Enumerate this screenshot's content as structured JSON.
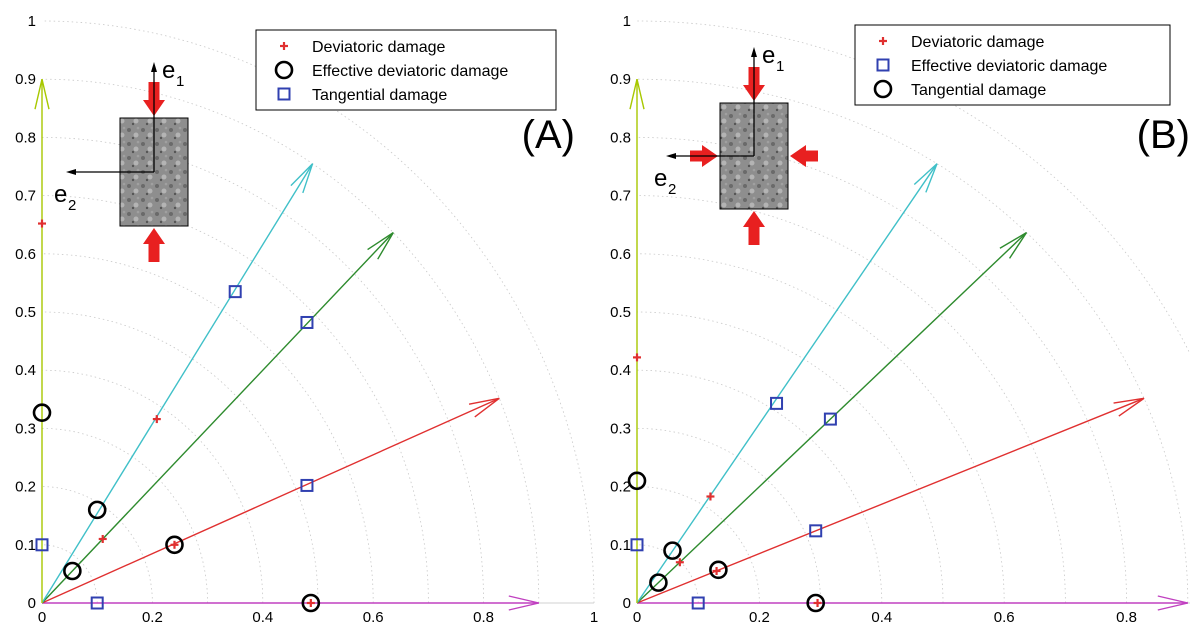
{
  "chart_data": [
    {
      "type": "scatter",
      "panel_label": "(A)",
      "xlim": [
        0,
        1
      ],
      "ylim": [
        0,
        1
      ],
      "x_ticks": [
        "0",
        "0.2",
        "0.4",
        "0.6",
        "0.8",
        "1"
      ],
      "y_ticks": [
        "0",
        "0.1",
        "0.2",
        "0.3",
        "0.4",
        "0.5",
        "0.6",
        "0.7",
        "0.8",
        "0.9",
        "1"
      ],
      "grid": "dotted radial arcs",
      "legend_position": "top-right",
      "axis_labels": {
        "e1": "e",
        "e1_sub": "1",
        "e2": "e",
        "e2_sub": "2"
      },
      "specimen": "uniaxial compression along e1",
      "rays": [
        {
          "angle_deg": 0,
          "length": 0.9,
          "color": "#c040c0"
        },
        {
          "angle_deg": 23,
          "length": 0.9,
          "color": "#e03030"
        },
        {
          "angle_deg": 45,
          "length": 0.9,
          "color": "#2e8b2e"
        },
        {
          "angle_deg": 57,
          "length": 0.9,
          "color": "#40c0c8"
        },
        {
          "angle_deg": 90,
          "length": 0.9,
          "color": "#a8c800"
        }
      ],
      "series": [
        {
          "name": "Deviatoric damage",
          "marker": "plus",
          "color": "#e03030",
          "points": [
            [
              0,
              0.652
            ],
            [
              0.11,
              0.11
            ],
            [
              0.208,
              0.316
            ],
            [
              0.24,
              0.1
            ],
            [
              0.487,
              0.0
            ]
          ]
        },
        {
          "name": "Effective deviatoric damage",
          "marker": "circle",
          "color": "#000000",
          "points": [
            [
              0,
              0.327
            ],
            [
              0.055,
              0.055
            ],
            [
              0.1,
              0.16
            ],
            [
              0.24,
              0.1
            ],
            [
              0.487,
              0.0
            ]
          ]
        },
        {
          "name": "Tangential damage",
          "marker": "square",
          "color": "#3040b0",
          "points": [
            [
              0,
              0.1
            ],
            [
              0.1,
              0.0
            ],
            [
              0.35,
              0.535
            ],
            [
              0.48,
              0.482
            ],
            [
              0.48,
              0.202
            ]
          ]
        }
      ]
    },
    {
      "type": "scatter",
      "panel_label": "(B)",
      "xlim": [
        0,
        1
      ],
      "ylim": [
        0,
        1
      ],
      "x_ticks": [
        "0",
        "0.2",
        "0.4",
        "0.6",
        "0.8"
      ],
      "y_ticks": [
        "0",
        "0.1",
        "0.2",
        "0.3",
        "0.4",
        "0.5",
        "0.6",
        "0.7",
        "0.8",
        "0.9",
        "1"
      ],
      "grid": "dotted radial arcs",
      "legend_position": "top-right",
      "axis_labels": {
        "e1": "e",
        "e1_sub": "1",
        "e2": "e",
        "e2_sub": "2"
      },
      "specimen": "biaxial compression along e1 and e2",
      "rays": [
        {
          "angle_deg": 0,
          "length": 0.9,
          "color": "#c040c0"
        },
        {
          "angle_deg": 23,
          "length": 0.9,
          "color": "#e03030"
        },
        {
          "angle_deg": 45,
          "length": 0.9,
          "color": "#2e8b2e"
        },
        {
          "angle_deg": 57,
          "length": 0.9,
          "color": "#40c0c8"
        },
        {
          "angle_deg": 90,
          "length": 0.9,
          "color": "#a8c800"
        }
      ],
      "series": [
        {
          "name": "Deviatoric damage",
          "marker": "plus",
          "color": "#e03030",
          "points": [
            [
              0,
              0.422
            ],
            [
              0.07,
              0.07
            ],
            [
              0.12,
              0.183
            ],
            [
              0.13,
              0.055
            ],
            [
              0.295,
              0.0
            ]
          ]
        },
        {
          "name": "Effective deviatoric damage",
          "marker": "square",
          "color": "#3040b0",
          "points": [
            [
              0,
              0.1
            ],
            [
              0.1,
              0.0
            ],
            [
              0.228,
              0.343
            ],
            [
              0.316,
              0.316
            ],
            [
              0.292,
              0.124
            ]
          ]
        },
        {
          "name": "Tangential damage",
          "marker": "circle",
          "color": "#000000",
          "points": [
            [
              0,
              0.21
            ],
            [
              0.035,
              0.035
            ],
            [
              0.058,
              0.09
            ],
            [
              0.133,
              0.057
            ],
            [
              0.292,
              0.0
            ]
          ]
        }
      ]
    }
  ]
}
